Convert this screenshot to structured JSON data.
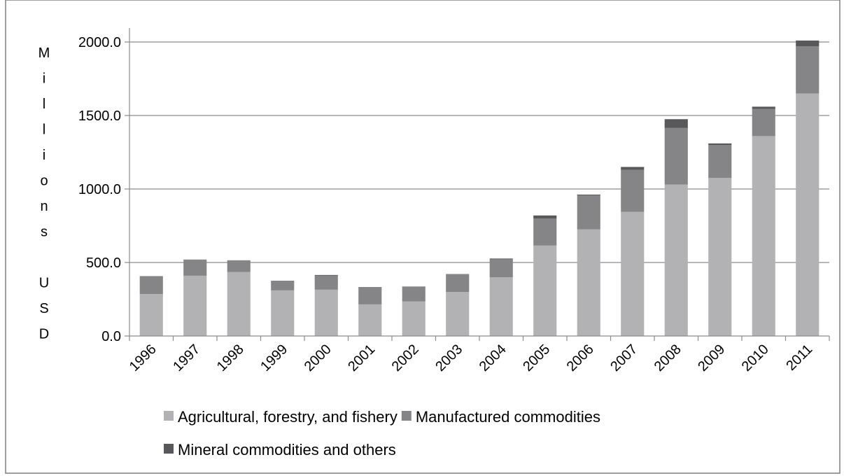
{
  "chart_data": {
    "type": "bar",
    "stacked": true,
    "title": "",
    "xlabel": "",
    "ylabel": "Millions USD",
    "ylabel_letters": [
      "M",
      "i",
      "l",
      "l",
      "i",
      "o",
      "n",
      "s",
      "",
      "U",
      "S",
      "D"
    ],
    "ylim": [
      0,
      2000
    ],
    "yticks": [
      0,
      500,
      1000,
      1500,
      2000
    ],
    "ytick_labels": [
      "0.0",
      "500.0",
      "1000.0",
      "1500.0",
      "2000.0"
    ],
    "grid": true,
    "legend_position": "bottom",
    "categories": [
      "1996",
      "1997",
      "1998",
      "1999",
      "2000",
      "2001",
      "2002",
      "2003",
      "2004",
      "2005",
      "2006",
      "2007",
      "2008",
      "2009",
      "2010",
      "2011"
    ],
    "series": [
      {
        "name": "Agricultural, forestry, and fishery",
        "color": "#b2b2b4",
        "values": [
          285,
          410,
          435,
          310,
          315,
          215,
          235,
          300,
          400,
          615,
          725,
          845,
          1030,
          1075,
          1360,
          1650
        ]
      },
      {
        "name": "Manufactured commodities",
        "color": "#858587",
        "values": [
          120,
          108,
          78,
          60,
          95,
          112,
          98,
          118,
          122,
          185,
          232,
          285,
          385,
          225,
          185,
          320
        ]
      },
      {
        "name": "Mineral commodities and others",
        "color": "#58585a",
        "values": [
          2,
          2,
          2,
          5,
          5,
          5,
          3,
          3,
          5,
          20,
          5,
          20,
          60,
          10,
          15,
          40
        ]
      }
    ]
  }
}
